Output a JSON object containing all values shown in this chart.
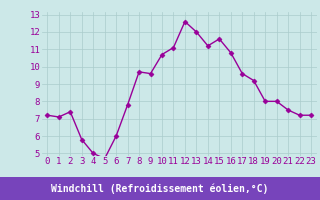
{
  "x": [
    0,
    1,
    2,
    3,
    4,
    5,
    6,
    7,
    8,
    9,
    10,
    11,
    12,
    13,
    14,
    15,
    16,
    17,
    18,
    19,
    20,
    21,
    22,
    23
  ],
  "y": [
    7.2,
    7.1,
    7.4,
    5.8,
    5.0,
    4.7,
    6.0,
    7.8,
    9.7,
    9.6,
    10.7,
    11.1,
    12.6,
    12.0,
    11.2,
    11.6,
    10.8,
    9.6,
    9.2,
    8.0,
    8.0,
    7.5,
    7.2,
    7.2
  ],
  "line_color": "#990099",
  "marker": "D",
  "marker_size": 2.5,
  "bg_color": "#cce8e8",
  "grid_color": "#aacccc",
  "xlabel": "Windchill (Refroidissement éolien,°C)",
  "ylim": [
    5,
    13
  ],
  "xlim_min": -0.5,
  "xlim_max": 23.5,
  "yticks": [
    5,
    6,
    7,
    8,
    9,
    10,
    11,
    12,
    13
  ],
  "xticks": [
    0,
    1,
    2,
    3,
    4,
    5,
    6,
    7,
    8,
    9,
    10,
    11,
    12,
    13,
    14,
    15,
    16,
    17,
    18,
    19,
    20,
    21,
    22,
    23
  ],
  "xlabel_color": "#ffffff",
  "xlabel_bg": "#7744bb",
  "tick_label_color": "#990099",
  "tick_fontsize": 6.5,
  "xlabel_fontsize": 7.0,
  "linewidth": 1.0
}
